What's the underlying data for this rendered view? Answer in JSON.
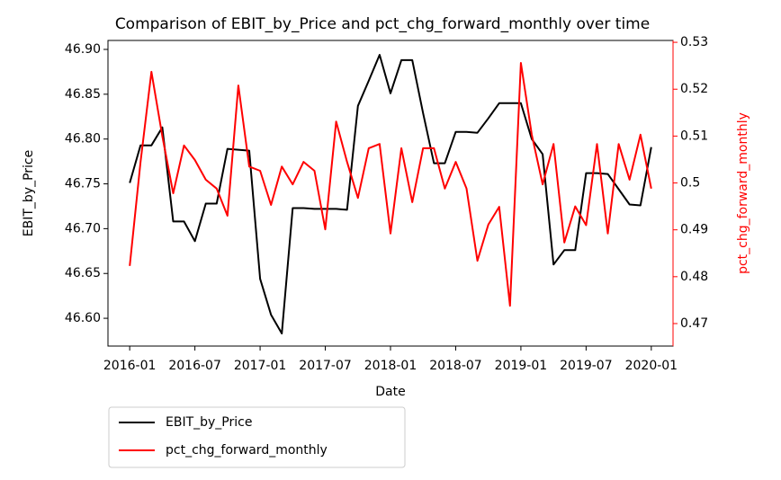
{
  "chart_data": {
    "type": "line",
    "title": "Comparison of EBIT_by_Price and pct_chg_forward_monthly over time",
    "x_label": "Date",
    "y_label": "EBIT_by_Price",
    "y2_label": "pct_chg_forward_monthly",
    "y2_label_color": "#ff0000",
    "x": [
      "2016-01",
      "2016-02",
      "2016-03",
      "2016-04",
      "2016-05",
      "2016-06",
      "2016-07",
      "2016-08",
      "2016-09",
      "2016-10",
      "2016-11",
      "2016-12",
      "2017-01",
      "2017-02",
      "2017-03",
      "2017-04",
      "2017-05",
      "2017-06",
      "2017-07",
      "2017-08",
      "2017-09",
      "2017-10",
      "2017-11",
      "2017-12",
      "2018-01",
      "2018-02",
      "2018-03",
      "2018-04",
      "2018-05",
      "2018-06",
      "2018-07",
      "2018-08",
      "2018-09",
      "2018-10",
      "2018-11",
      "2018-12",
      "2019-01",
      "2019-02",
      "2019-03",
      "2019-04",
      "2019-05",
      "2019-06",
      "2019-07",
      "2019-08",
      "2019-09",
      "2019-10",
      "2019-11",
      "2019-12",
      "2020-01"
    ],
    "xlim": [
      "2015-11",
      "2020-03"
    ],
    "xticks": [
      "2016-01",
      "2016-07",
      "2017-01",
      "2017-07",
      "2018-01",
      "2018-07",
      "2019-01",
      "2019-07",
      "2020-01"
    ],
    "ylim": [
      46.569,
      46.91
    ],
    "yticks": [
      {
        "value": 46.6,
        "label": "46.60"
      },
      {
        "value": 46.65,
        "label": "46.65"
      },
      {
        "value": 46.7,
        "label": "46.70"
      },
      {
        "value": 46.75,
        "label": "46.75"
      },
      {
        "value": 46.8,
        "label": "46.80"
      },
      {
        "value": 46.85,
        "label": "46.85"
      },
      {
        "value": 46.9,
        "label": "46.90"
      }
    ],
    "y2lim": [
      0.4652,
      0.5304
    ],
    "y2ticks": [
      0.47,
      0.48,
      0.49,
      0.5,
      0.51,
      0.52,
      0.53
    ],
    "y2_tick_color": "#ff0000",
    "legend": "below-left",
    "series": [
      {
        "name": "EBIT_by_Price",
        "color": "#000000",
        "axis": "y",
        "values": [
          46.751,
          46.793,
          46.793,
          46.813,
          46.708,
          46.708,
          46.686,
          46.728,
          46.728,
          46.789,
          46.788,
          46.787,
          46.644,
          46.604,
          46.583,
          46.723,
          46.723,
          46.722,
          46.722,
          46.722,
          46.721,
          46.837,
          46.865,
          46.894,
          46.851,
          46.888,
          46.888,
          46.829,
          46.773,
          46.773,
          46.808,
          46.808,
          46.807,
          46.823,
          46.84,
          46.84,
          46.84,
          46.8,
          46.783,
          46.66,
          46.676,
          46.676,
          46.762,
          46.762,
          46.761,
          46.744,
          46.727,
          46.726,
          46.791
        ]
      },
      {
        "name": "pct_chg_forward_monthly",
        "color": "#ff0000",
        "axis": "y2",
        "values": [
          0.4823,
          0.5045,
          0.5237,
          0.51,
          0.4978,
          0.508,
          0.5049,
          0.5007,
          0.4988,
          0.493,
          0.5208,
          0.5035,
          0.5026,
          0.4953,
          0.5035,
          0.4997,
          0.5045,
          0.5026,
          0.4901,
          0.5131,
          0.5045,
          0.4968,
          0.5074,
          0.5083,
          0.4892,
          0.5074,
          0.4959,
          0.5074,
          0.5074,
          0.4988,
          0.5045,
          0.4988,
          0.4834,
          0.4911,
          0.4949,
          0.4738,
          0.5256,
          0.5103,
          0.4997,
          0.5083,
          0.4873,
          0.495,
          0.491,
          0.5083,
          0.4892,
          0.5083,
          0.5007,
          0.5103,
          0.4988
        ]
      }
    ]
  }
}
